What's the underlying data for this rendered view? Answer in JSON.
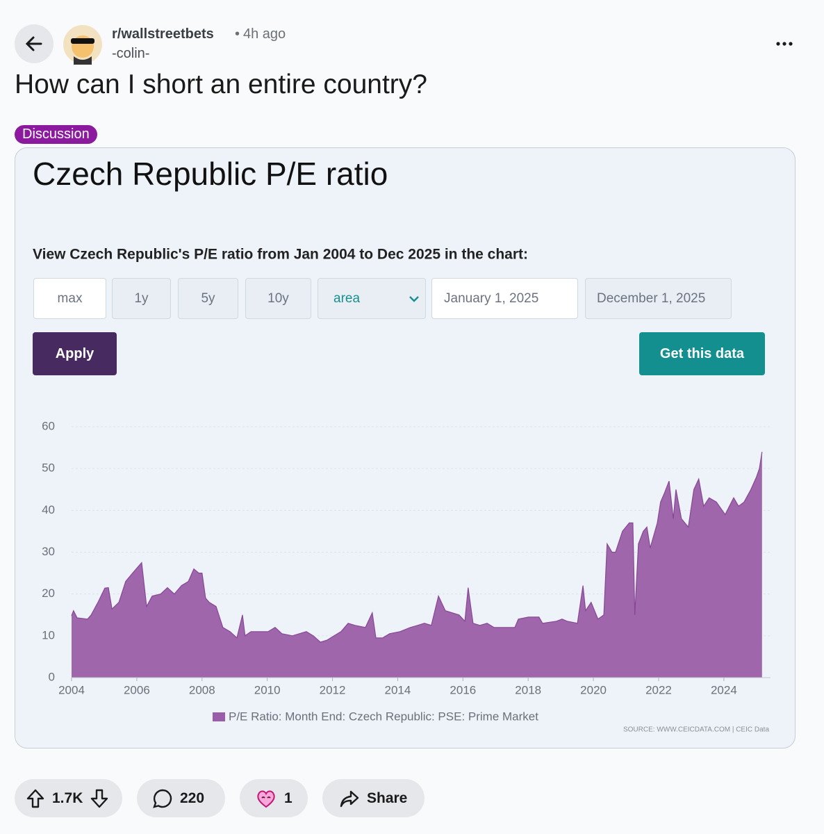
{
  "post": {
    "subreddit": "r/wallstreetbets",
    "time": "4h ago",
    "author": "-colin-",
    "title": "How can I short an entire country?",
    "flair": "Discussion"
  },
  "controls": {
    "ranges": [
      "max",
      "1y",
      "5y",
      "10y"
    ],
    "chart_type": "area",
    "start_date": "January 1, 2025",
    "end_date": "December 1, 2025",
    "apply": "Apply",
    "get_data": "Get this data"
  },
  "chart_data": {
    "type": "area",
    "title": "Czech Republic P/E ratio",
    "subtitle": "View Czech Republic's P/E ratio from Jan 2004 to Dec 2025 in the chart:",
    "source": "SOURCE: WWW.CEICDATA.COM | CEIC Data",
    "x": [
      2004.0,
      2004.06,
      2004.17,
      2004.49,
      2004.6,
      2004.81,
      2005.02,
      2005.13,
      2005.24,
      2005.45,
      2005.66,
      2005.87,
      2006.15,
      2006.3,
      2006.47,
      2006.73,
      2006.94,
      2007.15,
      2007.37,
      2007.58,
      2007.75,
      2007.9,
      2008.0,
      2008.11,
      2008.22,
      2008.43,
      2008.64,
      2008.86,
      2009.07,
      2009.24,
      2009.32,
      2009.5,
      2009.71,
      2010.03,
      2010.24,
      2010.45,
      2010.77,
      2011.2,
      2011.41,
      2011.63,
      2011.84,
      2012.05,
      2012.26,
      2012.48,
      2012.69,
      2013.01,
      2013.22,
      2013.33,
      2013.54,
      2013.75,
      2014.07,
      2014.39,
      2014.61,
      2014.82,
      2015.03,
      2015.25,
      2015.46,
      2015.88,
      2016.06,
      2016.16,
      2016.31,
      2016.52,
      2016.74,
      2016.95,
      2017.59,
      2017.7,
      2018.01,
      2018.33,
      2018.44,
      2018.87,
      2019.04,
      2019.19,
      2019.51,
      2019.68,
      2019.76,
      2019.93,
      2020.14,
      2020.32,
      2020.42,
      2020.57,
      2020.68,
      2020.89,
      2021.1,
      2021.21,
      2021.27,
      2021.38,
      2021.53,
      2021.64,
      2021.74,
      2021.96,
      2022.06,
      2022.17,
      2022.32,
      2022.45,
      2022.53,
      2022.7,
      2022.91,
      2023.08,
      2023.23,
      2023.38,
      2023.55,
      2023.77,
      2024.04,
      2024.3,
      2024.45,
      2024.62,
      2024.83,
      2025.0,
      2025.09,
      2025.17
    ],
    "series": [
      {
        "name": "P/E Ratio: Month End: Czech Republic: PSE: Prime Market",
        "color": "#9a5ea8",
        "values": [
          14.8,
          16,
          14.3,
          14,
          15,
          18,
          21.4,
          21.5,
          16.4,
          18,
          23,
          25,
          27.5,
          17,
          19.5,
          20,
          21.5,
          20,
          22,
          23,
          26,
          25,
          25,
          19,
          18,
          17,
          12,
          11,
          9.5,
          15,
          10,
          11,
          11,
          11,
          12,
          10.5,
          10,
          11,
          10,
          8.5,
          9,
          10,
          11,
          13,
          12.5,
          12,
          15.5,
          9.5,
          9.5,
          10.5,
          11,
          12,
          12.5,
          13,
          12.5,
          19.5,
          16,
          15,
          13.5,
          21.5,
          13,
          12.5,
          13,
          12,
          12,
          14,
          14.5,
          14.5,
          13,
          13.5,
          14,
          13.5,
          13,
          22,
          16,
          18,
          14,
          15,
          32,
          30,
          30,
          35,
          37,
          37,
          15,
          32,
          35,
          36,
          31,
          37,
          42,
          44,
          47,
          38,
          45,
          38,
          36,
          45,
          47.5,
          41,
          43,
          42,
          39,
          43,
          41,
          42,
          45,
          48,
          50,
          54
        ]
      }
    ],
    "xlim": [
      2004,
      2025.43
    ],
    "ylim": [
      0,
      60
    ],
    "xticks": [
      2004,
      2006,
      2008,
      2010,
      2012,
      2014,
      2016,
      2018,
      2020,
      2022,
      2024
    ],
    "yticks": [
      0,
      10,
      20,
      30,
      40,
      50,
      60
    ],
    "grid": true
  },
  "actions": {
    "votes": "1.7K",
    "comments": "220",
    "awards": "1",
    "share": "Share"
  }
}
